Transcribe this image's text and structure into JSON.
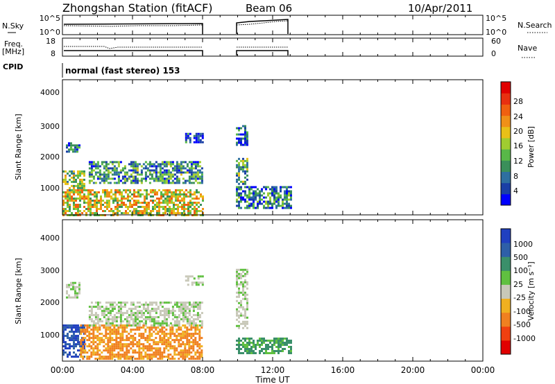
{
  "header": {
    "title": "Zhongshan Station (fitACF)",
    "beam": "Beam 06",
    "date": "10/Apr/2011"
  },
  "top_panels": {
    "nsky_label": "N.Sky",
    "nsky_ticks": [
      "10^5",
      "10^0"
    ],
    "nsearch_label": "N.Search",
    "nsearch_ticks": [
      "10^5",
      "10^0"
    ],
    "freq_label": "Freq.",
    "freq_unit": "[MHz]",
    "freq_ticks": [
      "18",
      "8"
    ],
    "nave_label": "Nave",
    "nave_ticks": [
      "60",
      "0"
    ],
    "cpid_label": "CPID",
    "cpid_text": "normal (fast stereo) 153"
  },
  "chart_data": [
    {
      "type": "heatmap",
      "name": "power",
      "ylabel": "Slant Range [km]",
      "yticks": [
        "4000",
        "3000",
        "2000",
        "1000"
      ],
      "ylim": [
        180,
        4500
      ],
      "xlim": [
        0,
        24
      ],
      "colorbar_label": "Power [dB]",
      "colorbar_ticks": [
        "28",
        "24",
        "20",
        "16",
        "12",
        "8",
        "4"
      ],
      "colorbar_colors": [
        "#0000ff",
        "#1a3fa6",
        "#2e6fa0",
        "#3a8f5a",
        "#58b848",
        "#a0cc30",
        "#e8c018",
        "#f09018",
        "#f06010",
        "#e83010",
        "#e00000"
      ],
      "blocks": [
        {
          "t": [
            0.0,
            8.0
          ],
          "r": [
            200,
            1000
          ],
          "level": 0.55
        },
        {
          "t": [
            0.0,
            1.2
          ],
          "r": [
            1000,
            1600
          ],
          "level": 0.45
        },
        {
          "t": [
            0.2,
            1.0
          ],
          "r": [
            2200,
            2500
          ],
          "level": 0.2
        },
        {
          "t": [
            1.5,
            8.0
          ],
          "r": [
            1200,
            1900
          ],
          "level": 0.3
        },
        {
          "t": [
            7.0,
            8.0
          ],
          "r": [
            2500,
            2800
          ],
          "level": 0.15
        },
        {
          "t": [
            9.9,
            10.6
          ],
          "r": [
            2400,
            3050
          ],
          "level": 0.2
        },
        {
          "t": [
            9.9,
            10.6
          ],
          "r": [
            1200,
            2000
          ],
          "level": 0.35
        },
        {
          "t": [
            9.9,
            13.0
          ],
          "r": [
            400,
            1100
          ],
          "level": 0.25
        }
      ]
    },
    {
      "type": "heatmap",
      "name": "velocity",
      "ylabel": "Slant Range [km]",
      "yticks": [
        "4000",
        "3000",
        "2000",
        "1000"
      ],
      "ylim": [
        180,
        4500
      ],
      "xlim": [
        0,
        24
      ],
      "xticks": [
        "00:00",
        "04:00",
        "08:00",
        "12:00",
        "16:00",
        "20:00",
        "00:00"
      ],
      "xlabel": "Time UT",
      "colorbar_label": "Velocity [m s⁻¹]",
      "colorbar_ticks": [
        "1000",
        "500",
        "100",
        "25",
        "-25",
        "-100",
        "-500",
        "-1000"
      ],
      "colorbar_colors": [
        "#2040c0",
        "#2e5fa8",
        "#3a8f6a",
        "#60c040",
        "#c8c8b8",
        "#f0b020",
        "#f08020",
        "#f04010",
        "#e00000"
      ],
      "blocks": [
        {
          "t": [
            0.0,
            1.3
          ],
          "r": [
            300,
            1300
          ],
          "level": "blue"
        },
        {
          "t": [
            1.0,
            8.0
          ],
          "r": [
            250,
            1300
          ],
          "level": "orange"
        },
        {
          "t": [
            0.2,
            1.0
          ],
          "r": [
            2100,
            2600
          ],
          "level": "grey"
        },
        {
          "t": [
            1.5,
            8.0
          ],
          "r": [
            1300,
            2000
          ],
          "level": "grey"
        },
        {
          "t": [
            7.0,
            8.0
          ],
          "r": [
            2500,
            2800
          ],
          "level": "grey"
        },
        {
          "t": [
            9.9,
            10.6
          ],
          "r": [
            1200,
            3000
          ],
          "level": "grey"
        },
        {
          "t": [
            9.9,
            13.0
          ],
          "r": [
            400,
            900
          ],
          "level": "green"
        }
      ]
    }
  ]
}
